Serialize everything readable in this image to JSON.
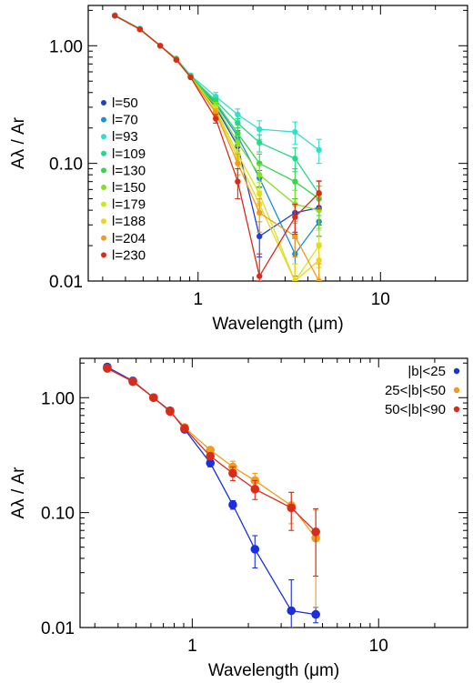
{
  "chart_data": [
    {
      "type": "line",
      "xlabel": "Wavelength (μm)",
      "ylabel": "Aλ / Ar",
      "x_scale": "log",
      "y_scale": "log",
      "xlim": [
        0.25,
        30
      ],
      "ylim": [
        0.01,
        2.2
      ],
      "x_ticks": [
        {
          "value": 1,
          "label": "1"
        },
        {
          "value": 10,
          "label": "10"
        }
      ],
      "y_ticks": [
        {
          "value": 0.01,
          "label": "0.01"
        },
        {
          "value": 0.1,
          "label": "0.10"
        },
        {
          "value": 1,
          "label": "1.00"
        }
      ],
      "legend_position": "left",
      "x": [
        0.35,
        0.48,
        0.62,
        0.76,
        0.91,
        1.25,
        1.65,
        2.17,
        3.4,
        4.6
      ],
      "series": [
        {
          "name": "l=50",
          "color": "#1f3fd0",
          "values": [
            1.8,
            1.38,
            1.0,
            0.76,
            0.54,
            0.3,
            0.14,
            0.024,
            0.038,
            0.042
          ],
          "errors": [
            0.03,
            0.02,
            0.01,
            0.01,
            0.01,
            0.02,
            0.02,
            0.008,
            0.012,
            0.012
          ]
        },
        {
          "name": "l=70",
          "color": "#1a90e0",
          "values": [
            1.8,
            1.38,
            1.0,
            0.76,
            0.55,
            0.32,
            0.17,
            0.075,
            0.017,
            0.032
          ],
          "errors": [
            0.03,
            0.02,
            0.01,
            0.01,
            0.01,
            0.02,
            0.02,
            0.012,
            0.006,
            0.008
          ]
        },
        {
          "name": "l=93",
          "color": "#30e0cc",
          "values": [
            1.82,
            1.4,
            1.0,
            0.78,
            0.56,
            0.37,
            0.26,
            0.195,
            0.185,
            0.13
          ],
          "errors": [
            0.03,
            0.02,
            0.01,
            0.01,
            0.02,
            0.03,
            0.03,
            0.035,
            0.04,
            0.03
          ]
        },
        {
          "name": "l=109",
          "color": "#26d888",
          "values": [
            1.8,
            1.38,
            1.0,
            0.77,
            0.55,
            0.34,
            0.22,
            0.15,
            0.11,
            0.055
          ],
          "errors": [
            0.03,
            0.02,
            0.01,
            0.01,
            0.01,
            0.02,
            0.02,
            0.025,
            0.025,
            0.015
          ]
        },
        {
          "name": "l=130",
          "color": "#33d64a",
          "values": [
            1.8,
            1.38,
            1.0,
            0.77,
            0.55,
            0.33,
            0.18,
            0.1,
            0.07,
            0.05
          ],
          "errors": [
            0.03,
            0.02,
            0.01,
            0.01,
            0.01,
            0.02,
            0.02,
            0.02,
            0.02,
            0.014
          ]
        },
        {
          "name": "l=150",
          "color": "#86e020",
          "values": [
            1.8,
            1.38,
            1.0,
            0.76,
            0.54,
            0.31,
            0.15,
            0.08,
            0.045,
            0.04
          ],
          "errors": [
            0.03,
            0.02,
            0.01,
            0.01,
            0.01,
            0.02,
            0.02,
            0.018,
            0.014,
            0.012
          ]
        },
        {
          "name": "l=179",
          "color": "#cce820",
          "values": [
            1.8,
            1.38,
            1.0,
            0.76,
            0.54,
            0.29,
            0.12,
            0.055,
            0.01,
            0.02
          ],
          "errors": [
            0.03,
            0.02,
            0.01,
            0.01,
            0.01,
            0.02,
            0.02,
            0.014,
            0.004,
            0.007
          ]
        },
        {
          "name": "l=188",
          "color": "#f2d21a",
          "values": [
            1.8,
            1.38,
            1.0,
            0.76,
            0.54,
            0.28,
            0.11,
            0.045,
            0.01,
            0.015
          ],
          "errors": [
            0.03,
            0.02,
            0.01,
            0.01,
            0.01,
            0.02,
            0.02,
            0.013,
            0.004,
            0.006
          ]
        },
        {
          "name": "l=204",
          "color": "#f39a1c",
          "values": [
            1.8,
            1.38,
            1.0,
            0.76,
            0.54,
            0.27,
            0.1,
            0.038,
            0.024,
            0.01
          ],
          "errors": [
            0.03,
            0.02,
            0.01,
            0.01,
            0.01,
            0.02,
            0.02,
            0.012,
            0.008,
            0.004
          ]
        },
        {
          "name": "l=230",
          "color": "#d92a1a",
          "values": [
            1.8,
            1.38,
            1.0,
            0.76,
            0.54,
            0.24,
            0.07,
            0.011,
            0.035,
            0.056
          ],
          "errors": [
            0.03,
            0.02,
            0.01,
            0.01,
            0.01,
            0.02,
            0.02,
            0.006,
            0.01,
            0.015
          ]
        }
      ]
    },
    {
      "type": "line",
      "xlabel": "Wavelength (μm)",
      "ylabel": "Aλ / Ar",
      "x_scale": "log",
      "y_scale": "log",
      "xlim": [
        0.25,
        30
      ],
      "ylim": [
        0.01,
        2.2
      ],
      "x_ticks": [
        {
          "value": 1,
          "label": "1"
        },
        {
          "value": 10,
          "label": "10"
        }
      ],
      "y_ticks": [
        {
          "value": 0.01,
          "label": "0.01"
        },
        {
          "value": 0.1,
          "label": "0.10"
        },
        {
          "value": 1,
          "label": "1.00"
        }
      ],
      "legend_position": "top-right",
      "x": [
        0.35,
        0.48,
        0.62,
        0.76,
        0.91,
        1.25,
        1.65,
        2.17,
        3.4,
        4.6
      ],
      "series": [
        {
          "name": "|b|<25",
          "color": "#1a2fe0",
          "values": [
            1.85,
            1.4,
            1.0,
            0.77,
            0.53,
            0.27,
            0.117,
            0.048,
            0.014,
            0.013
          ],
          "errors": [
            0.03,
            0.02,
            0.01,
            0.02,
            0.02,
            0.02,
            0.01,
            0.015,
            0.012,
            0.002
          ]
        },
        {
          "name": "25<|b|<50",
          "color": "#f39a1c",
          "values": [
            1.8,
            1.38,
            1.0,
            0.76,
            0.55,
            0.35,
            0.25,
            0.19,
            0.115,
            0.06
          ],
          "errors": [
            0.03,
            0.02,
            0.01,
            0.01,
            0.02,
            0.02,
            0.03,
            0.03,
            0.035,
            0.045
          ]
        },
        {
          "name": "50<|b|<90",
          "color": "#d92a1a",
          "values": [
            1.8,
            1.38,
            1.0,
            0.76,
            0.54,
            0.31,
            0.22,
            0.16,
            0.11,
            0.068
          ],
          "errors": [
            0.03,
            0.02,
            0.01,
            0.01,
            0.02,
            0.02,
            0.03,
            0.03,
            0.04,
            0.04
          ]
        }
      ]
    }
  ]
}
